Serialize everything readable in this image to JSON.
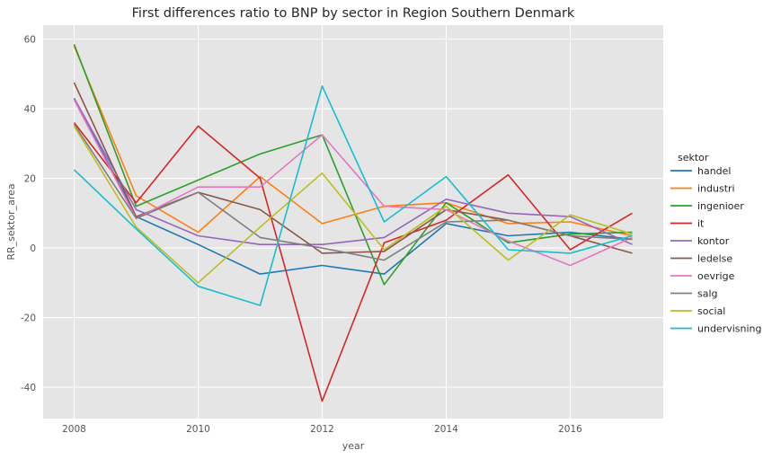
{
  "chart_data": {
    "type": "line",
    "title": "First differences ratio to BNP by sector in Region Southern Denmark",
    "xlabel": "year",
    "ylabel": "RR_sektor_area",
    "xlim": [
      2007.5,
      2017.5
    ],
    "ylim": [
      -49,
      64
    ],
    "xticks": [
      2008,
      2010,
      2012,
      2014,
      2016
    ],
    "yticks": [
      -40,
      -20,
      0,
      20,
      40,
      60
    ],
    "grid": true,
    "legend_title": "sektor",
    "legend_placement": "right",
    "x": [
      2008,
      2009,
      2010,
      2011,
      2012,
      2013,
      2014,
      2015,
      2016,
      2017
    ],
    "series": [
      {
        "name": "handel",
        "color": "#1f77b4",
        "values": [
          43,
          9,
          1,
          -7.5,
          -5,
          -7.5,
          7,
          3.5,
          4.5,
          2.5
        ]
      },
      {
        "name": "industri",
        "color": "#ff7f0e",
        "values": [
          58,
          15,
          4.5,
          20.5,
          7,
          12,
          13,
          7,
          7.5,
          3.5
        ]
      },
      {
        "name": "ingenioer",
        "color": "#2ca02c",
        "values": [
          58.5,
          12,
          19.5,
          27,
          32.5,
          -10.5,
          13,
          1.5,
          4,
          4.5
        ]
      },
      {
        "name": "it",
        "color": "#d62728",
        "values": [
          36,
          13,
          35,
          20,
          -44,
          1.5,
          8,
          21,
          -0.5,
          10
        ]
      },
      {
        "name": "kontor",
        "color": "#9467bd",
        "values": [
          43,
          11,
          3.5,
          1,
          1,
          3,
          14,
          10,
          9,
          1
        ]
      },
      {
        "name": "ledelse",
        "color": "#8c564b",
        "values": [
          47.5,
          9,
          16,
          11,
          -1.5,
          -1,
          11,
          8,
          3.5,
          -1.5
        ]
      },
      {
        "name": "oevrige",
        "color": "#e377c2",
        "values": [
          42.5,
          8.5,
          17.5,
          17.5,
          32.5,
          12,
          11,
          2,
          -5,
          3
        ]
      },
      {
        "name": "salg",
        "color": "#7f7f7f",
        "values": [
          35.5,
          8.5,
          16,
          3,
          0,
          -3.5,
          7.5,
          8,
          3.5,
          2.5
        ]
      },
      {
        "name": "social",
        "color": "#bcbd22",
        "values": [
          35,
          6,
          -10,
          6,
          21.5,
          -0.5,
          12,
          -3.5,
          9.5,
          4
        ]
      },
      {
        "name": "undervisning",
        "color": "#17becf",
        "values": [
          22.5,
          5.5,
          -11,
          -16.5,
          46.5,
          7.5,
          20.5,
          -0.5,
          -1.5,
          3.5
        ]
      }
    ]
  }
}
